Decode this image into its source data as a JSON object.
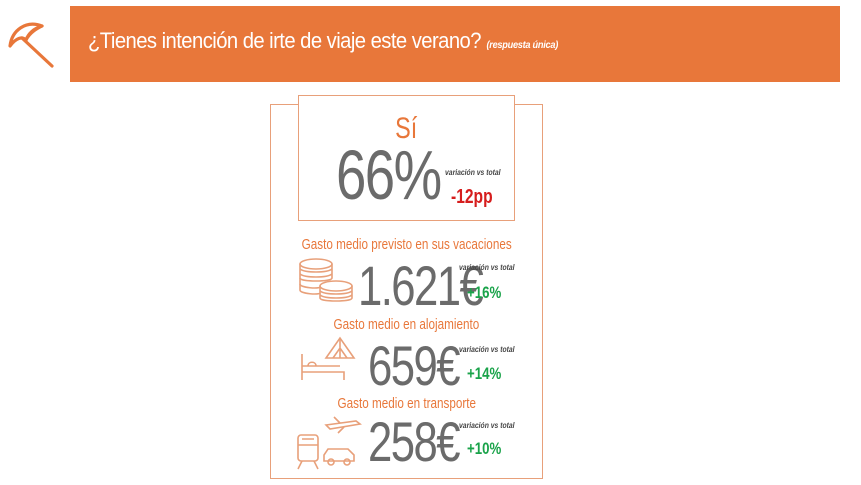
{
  "header": {
    "title": "¿Tienes intención de irte de viaje este verano?",
    "subtitle": "(respuesta única)"
  },
  "yes": {
    "label": "Sí",
    "value": "66%",
    "variation_label": "variación vs total",
    "variation": "-12pp"
  },
  "metrics": [
    {
      "title": "Gasto medio previsto en sus vacaciones",
      "value": "1.621€",
      "variation_label": "variación vs total",
      "variation": "+16%",
      "icon": "coins-icon"
    },
    {
      "title": "Gasto medio en alojamiento",
      "value": "659€",
      "variation_label": "variación vs total",
      "variation": "+14%",
      "icon": "tent-bed-icon"
    },
    {
      "title": "Gasto medio en transporte",
      "value": "258€",
      "variation_label": "variación vs total",
      "variation": "+10%",
      "icon": "transport-icon"
    }
  ],
  "colors": {
    "accent": "#e8773a",
    "value_gray": "#6b6b6b",
    "negative": "#d61d1d",
    "positive": "#1aa34a"
  }
}
